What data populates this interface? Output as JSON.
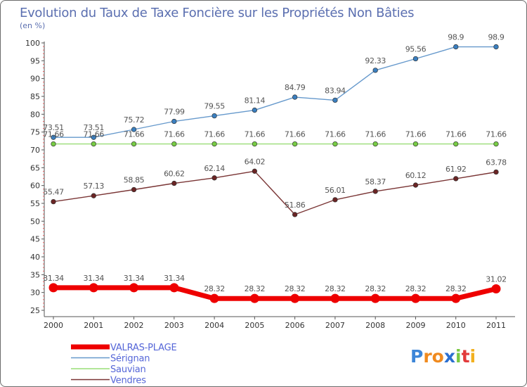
{
  "chart_data": {
    "type": "line",
    "title": "Evolution du Taux de Taxe Foncière sur les Propriétés Non Bâties",
    "subtitle": "(en %)",
    "xlabel": "",
    "ylabel": "(en %)",
    "ylim": [
      25,
      100
    ],
    "y_step": 5,
    "grid": false,
    "legend_position": "bottom-left",
    "categories": [
      "2000",
      "2001",
      "2002",
      "2003",
      "2004",
      "2005",
      "2006",
      "2007",
      "2008",
      "2009",
      "2010",
      "2011"
    ],
    "series": [
      {
        "name": "Sérignan",
        "color": "#6699cc",
        "marker_color": "#3a7fc0",
        "values": [
          73.51,
          73.51,
          75.72,
          77.99,
          79.55,
          81.14,
          84.79,
          83.94,
          92.33,
          95.56,
          98.9,
          98.9
        ],
        "labels": [
          "73.51",
          "73.51",
          "75.72",
          "77.99",
          "79.55",
          "81.14",
          "84.79",
          "83.94",
          "92.33",
          "95.56",
          "98.9",
          "98.9"
        ]
      },
      {
        "name": "Sauvian",
        "color": "#99dd77",
        "marker_color": "#77cc44",
        "values": [
          71.66,
          71.66,
          71.66,
          71.66,
          71.66,
          71.66,
          71.66,
          71.66,
          71.66,
          71.66,
          71.66,
          71.66
        ],
        "labels": [
          "71.66",
          "71.66",
          "71.66",
          "71.66",
          "71.66",
          "71.66",
          "71.66",
          "71.66",
          "71.66",
          "71.66",
          "71.66",
          "71.66"
        ]
      },
      {
        "name": "Vendres",
        "color": "#7a3535",
        "marker_color": "#6b2424",
        "values": [
          55.47,
          57.13,
          58.85,
          60.62,
          62.14,
          64.02,
          51.86,
          56.01,
          58.37,
          60.12,
          61.92,
          63.78
        ],
        "labels": [
          "55.47",
          "57.13",
          "58.85",
          "60.62",
          "62.14",
          "64.02",
          "51.86",
          "56.01",
          "58.37",
          "60.12",
          "61.92",
          "63.78"
        ]
      },
      {
        "name": "VALRAS-PLAGE",
        "color": "#ee0000",
        "marker_color": "#ee0000",
        "values": [
          31.34,
          31.34,
          31.34,
          31.34,
          28.32,
          28.32,
          28.32,
          28.32,
          28.32,
          28.32,
          28.32,
          31.02
        ],
        "labels": [
          "31.34",
          "31.34",
          "31.34",
          "31.34",
          "28.32",
          "28.32",
          "28.32",
          "28.32",
          "28.32",
          "28.32",
          "28.32",
          "31.02"
        ]
      }
    ],
    "legend_order": [
      "VALRAS-PLAGE",
      "Sérignan",
      "Sauvian",
      "Vendres"
    ]
  },
  "logo": {
    "text": "Proxiti"
  }
}
